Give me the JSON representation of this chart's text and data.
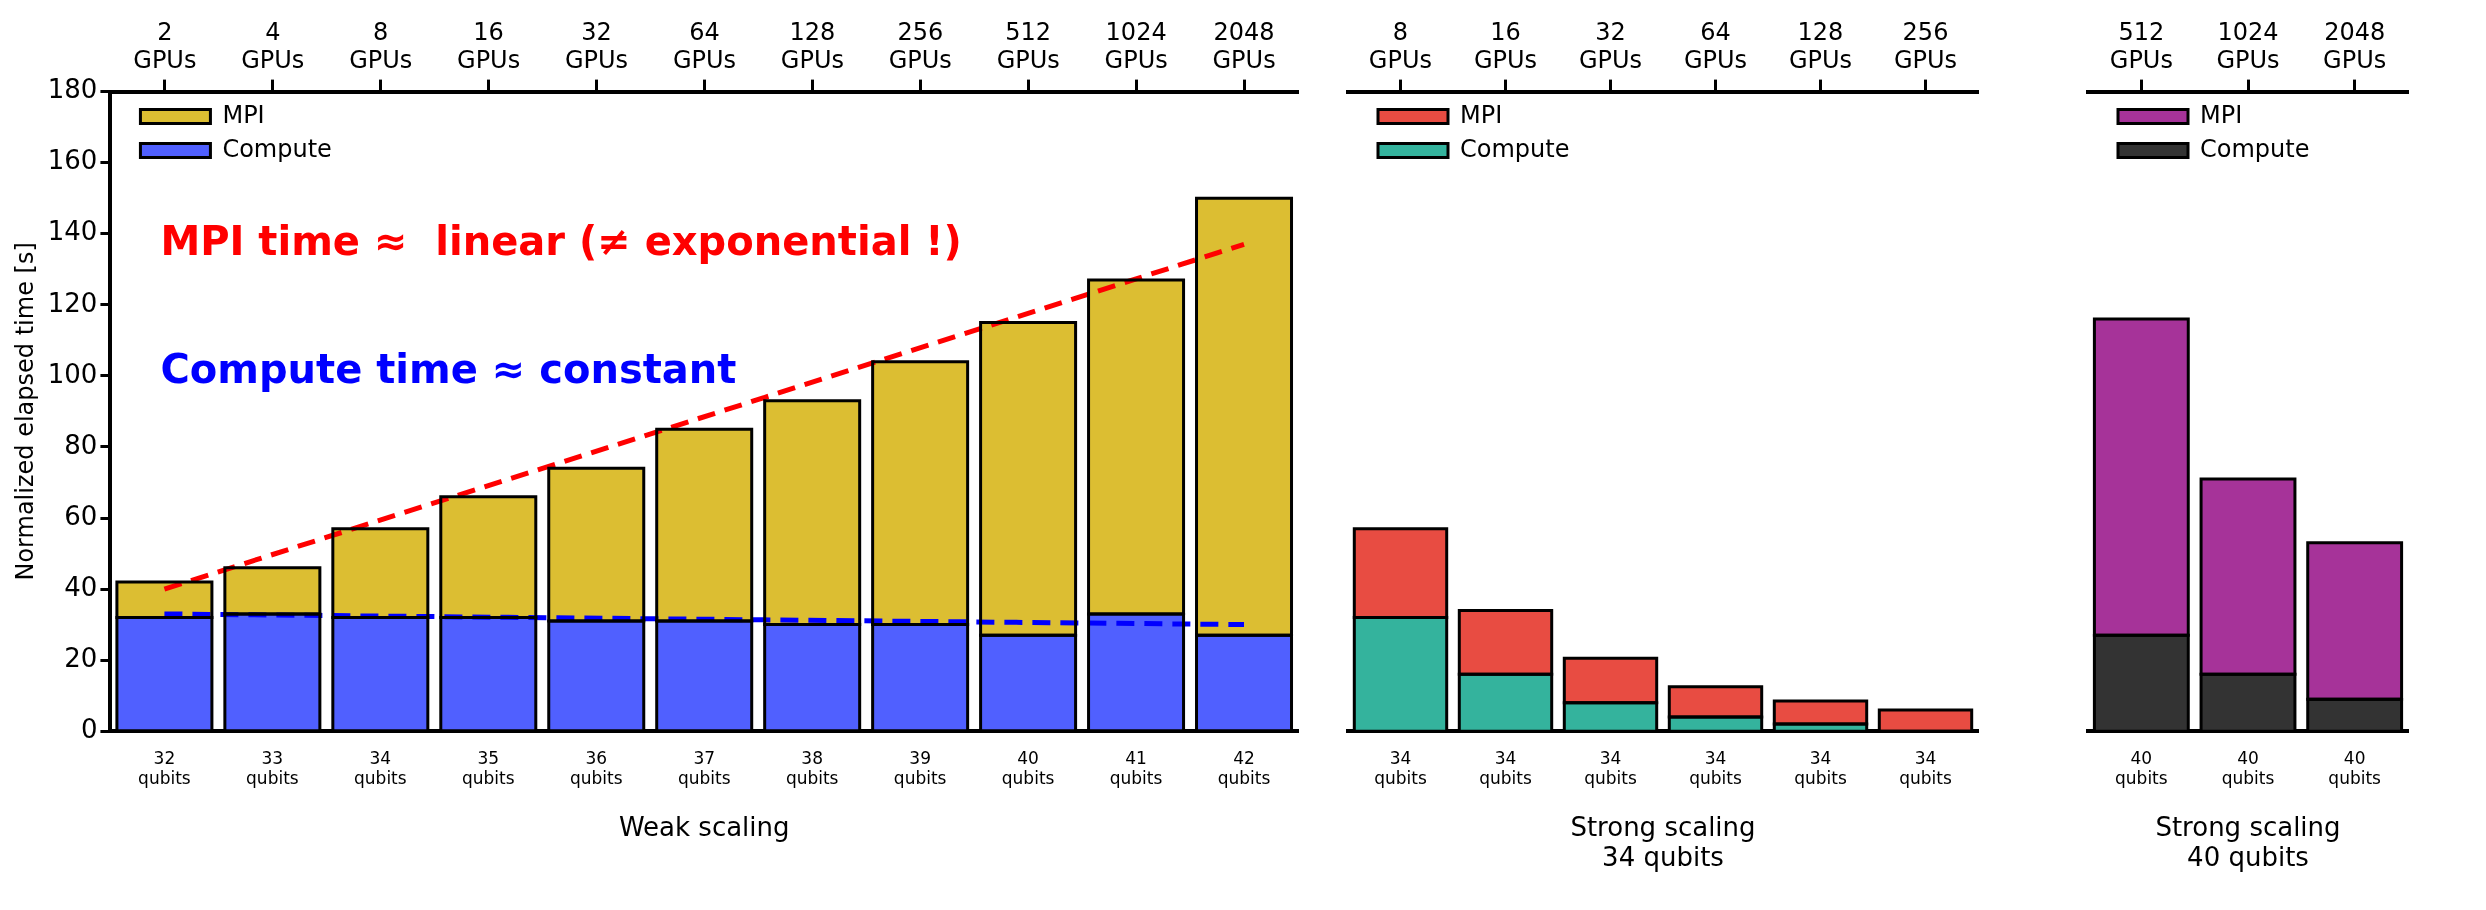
{
  "chart_data": [
    {
      "type": "bar",
      "stacked": true,
      "ylabel": "Normalized elapsed time [s]",
      "xlabel": "Weak scaling",
      "legend": "top left",
      "log": "x2",
      "categories": [
        "32 qubits",
        "33 qubits",
        "34 qubits",
        "35 qubits",
        "36 qubits",
        "37 qubits",
        "38 qubits",
        "39 qubits",
        "40 qubits",
        "41 qubits",
        "42 qubits"
      ],
      "x2lim": [
        1.41,
        2896
      ],
      "x2ticks": [
        {
          "value": 2,
          "label": "2 GPUs"
        },
        {
          "value": 4,
          "label": "4 GPUs"
        },
        {
          "value": 8,
          "label": "8 GPUs"
        },
        {
          "value": 16,
          "label": "16 GPUs"
        },
        {
          "value": 32,
          "label": "32 GPUs"
        },
        {
          "value": 64,
          "label": "64 GPUs"
        },
        {
          "value": 128,
          "label": "128 GPUs"
        },
        {
          "value": 256,
          "label": "256 GPUs"
        },
        {
          "value": 512,
          "label": "512 GPUs"
        },
        {
          "value": 1024,
          "label": "1024 GPUs"
        },
        {
          "value": 2048,
          "label": "2048 GPUs"
        }
      ],
      "ylim": [
        0,
        180
      ],
      "yticks": [
        0,
        20,
        40,
        60,
        80,
        100,
        120,
        140,
        160,
        180
      ],
      "series": [
        {
          "name": "Compute",
          "color": "#5060ff",
          "values": [
            32,
            33,
            32,
            32,
            31,
            31,
            30,
            30,
            27,
            33,
            27
          ]
        },
        {
          "name": "MPI",
          "color": "#dcbe32",
          "values": [
            10,
            13,
            25,
            34,
            43,
            54,
            63,
            74,
            88,
            94,
            123
          ]
        },
        {
          "type": "line",
          "line_style": "dashed",
          "color": "#ff0000",
          "x": [
            "32 qubits",
            "42 qubits"
          ],
          "values": [
            40,
            137
          ]
        },
        {
          "type": "line",
          "line_style": "dashed",
          "color": "#0000ff",
          "x": [
            "32 qubits",
            "42 qubits"
          ],
          "values": [
            33,
            30
          ]
        }
      ],
      "annotations": [
        "MPI time ≈  linear (≠ exponential !)",
        "Compute time ≈ constant"
      ]
    },
    {
      "type": "bar",
      "stacked": true,
      "xlabel": "Strong scaling\n34 qubits",
      "legend": "top left",
      "tick_labels": "x",
      "log": "x2",
      "categories": [
        "34 qubits",
        "34 qubits",
        "34 qubits",
        "34 qubits",
        "34 qubits",
        "34 qubits"
      ],
      "x2lim": [
        5.66,
        362
      ],
      "x2ticks": [
        {
          "value": 8,
          "label": "8 GPUs"
        },
        {
          "value": 16,
          "label": "16 GPUs"
        },
        {
          "value": 32,
          "label": "32 GPUs"
        },
        {
          "value": 64,
          "label": "64 GPUs"
        },
        {
          "value": 128,
          "label": "128 GPUs"
        },
        {
          "value": 256,
          "label": "256 GPUs"
        }
      ],
      "ylim": [
        0,
        180
      ],
      "yticks": [
        0,
        20,
        40,
        60,
        80,
        100,
        120,
        140,
        160,
        180
      ],
      "series": [
        {
          "name": "Compute",
          "color": "#34b39d",
          "values": [
            32,
            16,
            8,
            4,
            2,
            null
          ]
        },
        {
          "name": "MPI",
          "color": "#e84c42",
          "values": [
            25,
            18,
            12.5,
            8.5,
            6.5,
            6
          ]
        }
      ]
    },
    {
      "type": "bar",
      "stacked": true,
      "xlabel": "Strong scaling\n40 qubits",
      "legend": "top left",
      "tick_labels": "x",
      "log": "x2",
      "categories": [
        "40 qubits",
        "40 qubits",
        "40 qubits"
      ],
      "x2lim": [
        362,
        2896
      ],
      "x2ticks": [
        {
          "value": 512,
          "label": "512 GPUs"
        },
        {
          "value": 1024,
          "label": "1024 GPUs"
        },
        {
          "value": 2048,
          "label": "2048 GPUs"
        }
      ],
      "ylim": [
        0,
        180
      ],
      "yticks": [
        0,
        20,
        40,
        60,
        80,
        100,
        120,
        140,
        160,
        180
      ],
      "series": [
        {
          "name": "Compute",
          "color": "#333333",
          "values": [
            27,
            16,
            9
          ]
        },
        {
          "name": "MPI",
          "color": "#a63399",
          "values": [
            89,
            55,
            44
          ]
        }
      ]
    }
  ]
}
